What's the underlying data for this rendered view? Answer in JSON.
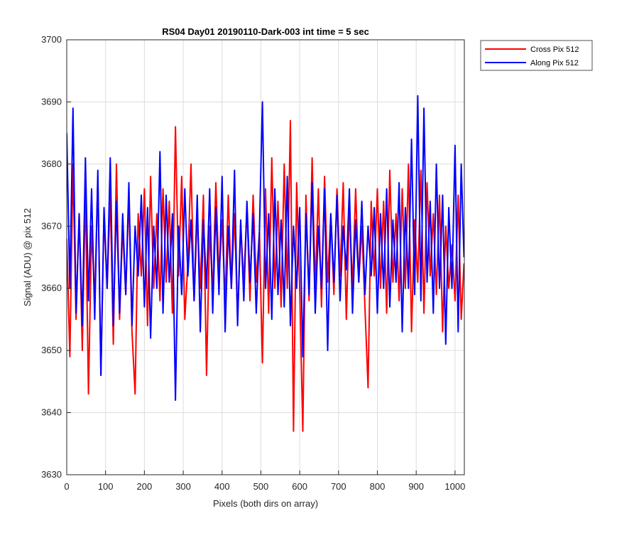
{
  "chart_data": {
    "type": "line",
    "title": "RS04 Day01 20190110-Dark-003 int time = 5 sec",
    "xlabel": "Pixels (both dirs on array)",
    "ylabel": "Signal (ADU) @ pix 512",
    "xlim": [
      0,
      1024
    ],
    "ylim": [
      3630,
      3700
    ],
    "xticks": [
      0,
      100,
      200,
      300,
      400,
      500,
      600,
      700,
      800,
      900,
      1000
    ],
    "yticks": [
      3630,
      3640,
      3650,
      3660,
      3670,
      3680,
      3690,
      3700
    ],
    "grid": true,
    "legend_position": "outside-top-right",
    "series": [
      {
        "name": "Cross Pix 512",
        "color": "#ff0000",
        "x": [
          0,
          8,
          16,
          24,
          32,
          40,
          48,
          56,
          64,
          72,
          80,
          88,
          96,
          104,
          112,
          120,
          128,
          136,
          144,
          152,
          160,
          168,
          176,
          184,
          192,
          200,
          208,
          216,
          224,
          232,
          240,
          248,
          256,
          264,
          272,
          280,
          288,
          296,
          304,
          312,
          320,
          328,
          336,
          344,
          352,
          360,
          368,
          376,
          384,
          392,
          400,
          408,
          416,
          424,
          432,
          440,
          448,
          456,
          464,
          472,
          480,
          488,
          496,
          504,
          512,
          520,
          528,
          536,
          544,
          552,
          560,
          568,
          576,
          584,
          592,
          600,
          608,
          616,
          624,
          632,
          640,
          648,
          656,
          664,
          672,
          680,
          688,
          696,
          704,
          712,
          720,
          728,
          736,
          744,
          752,
          760,
          768,
          776,
          784,
          792,
          800,
          808,
          816,
          824,
          832,
          840,
          848,
          856,
          864,
          872,
          880,
          888,
          896,
          904,
          912,
          920,
          928,
          936,
          944,
          952,
          960,
          968,
          976,
          984,
          992,
          1000,
          1008,
          1016,
          1023
        ],
        "values": [
          3668,
          3649,
          3680,
          3655,
          3672,
          3650,
          3676,
          3643,
          3670,
          3658,
          3678,
          3646,
          3672,
          3660,
          3675,
          3651,
          3680,
          3655,
          3670,
          3659,
          3675,
          3653,
          3643,
          3672,
          3662,
          3676,
          3654,
          3678,
          3660,
          3672,
          3658,
          3676,
          3661,
          3674,
          3656,
          3686,
          3662,
          3678,
          3655,
          3664,
          3680,
          3658,
          3672,
          3660,
          3675,
          3646,
          3670,
          3659,
          3677,
          3662,
          3671,
          3658,
          3675,
          3660,
          3672,
          3655,
          3670,
          3661,
          3673,
          3658,
          3675,
          3661,
          3669,
          3648,
          3676,
          3656,
          3681,
          3660,
          3674,
          3657,
          3680,
          3660,
          3687,
          3637,
          3677,
          3660,
          3637,
          3675,
          3658,
          3681,
          3660,
          3676,
          3657,
          3678,
          3661,
          3672,
          3659,
          3676,
          3662,
          3677,
          3655,
          3673,
          3660,
          3676,
          3661,
          3670,
          3657,
          3644,
          3674,
          3662,
          3676,
          3660,
          3674,
          3656,
          3679,
          3661,
          3672,
          3658,
          3676,
          3660,
          3680,
          3653,
          3671,
          3661,
          3679,
          3656,
          3677,
          3662,
          3672,
          3659,
          3675,
          3653,
          3670,
          3660,
          3667,
          3658,
          3675,
          3655,
          3664
        ]
      },
      {
        "name": "Along Pix 512",
        "color": "#0000ff",
        "x": [
          0,
          8,
          16,
          24,
          32,
          40,
          48,
          56,
          64,
          72,
          80,
          88,
          96,
          104,
          112,
          120,
          128,
          136,
          144,
          152,
          160,
          168,
          176,
          184,
          192,
          200,
          208,
          216,
          224,
          232,
          240,
          248,
          256,
          264,
          272,
          280,
          288,
          296,
          304,
          312,
          320,
          328,
          336,
          344,
          352,
          360,
          368,
          376,
          384,
          392,
          400,
          408,
          416,
          424,
          432,
          440,
          448,
          456,
          464,
          472,
          480,
          488,
          496,
          504,
          512,
          520,
          528,
          536,
          544,
          552,
          560,
          568,
          576,
          584,
          592,
          600,
          608,
          616,
          624,
          632,
          640,
          648,
          656,
          664,
          672,
          680,
          688,
          696,
          704,
          712,
          720,
          728,
          736,
          744,
          752,
          760,
          768,
          776,
          784,
          792,
          800,
          808,
          816,
          824,
          832,
          840,
          848,
          856,
          864,
          872,
          880,
          888,
          896,
          904,
          912,
          920,
          928,
          936,
          944,
          952,
          960,
          968,
          976,
          984,
          992,
          1000,
          1008,
          1016,
          1023
        ],
        "values": [
          3685,
          3660,
          3689,
          3656,
          3672,
          3654,
          3681,
          3658,
          3676,
          3655,
          3679,
          3646,
          3673,
          3660,
          3681,
          3654,
          3674,
          3656,
          3672,
          3659,
          3677,
          3654,
          3670,
          3662,
          3675,
          3657,
          3673,
          3652,
          3670,
          3660,
          3682,
          3656,
          3675,
          3661,
          3672,
          3642,
          3670,
          3659,
          3676,
          3662,
          3671,
          3658,
          3675,
          3653,
          3671,
          3660,
          3676,
          3656,
          3673,
          3659,
          3678,
          3653,
          3670,
          3660,
          3679,
          3654,
          3671,
          3658,
          3674,
          3661,
          3672,
          3656,
          3669,
          3690,
          3660,
          3672,
          3655,
          3676,
          3659,
          3671,
          3657,
          3678,
          3654,
          3670,
          3660,
          3673,
          3649,
          3672,
          3659,
          3677,
          3656,
          3670,
          3660,
          3676,
          3650,
          3672,
          3661,
          3675,
          3658,
          3670,
          3663,
          3676,
          3656,
          3671,
          3661,
          3674,
          3659,
          3670,
          3662,
          3673,
          3656,
          3672,
          3660,
          3676,
          3657,
          3671,
          3661,
          3677,
          3653,
          3673,
          3660,
          3684,
          3659,
          3691,
          3658,
          3689,
          3661,
          3674,
          3656,
          3680,
          3660,
          3675,
          3651,
          3673,
          3660,
          3683,
          3653,
          3680,
          3665
        ]
      }
    ]
  }
}
